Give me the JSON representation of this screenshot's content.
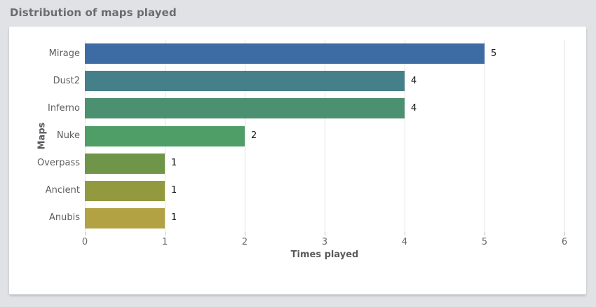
{
  "title": "Distribution of maps played",
  "chart_data": {
    "type": "bar",
    "orientation": "horizontal",
    "title": "Distribution of maps played",
    "categories": [
      "Mirage",
      "Dust2",
      "Inferno",
      "Nuke",
      "Overpass",
      "Ancient",
      "Anubis"
    ],
    "values": [
      5,
      4,
      4,
      2,
      1,
      1,
      1
    ],
    "value_labels": [
      "5",
      "4",
      "4",
      "2",
      "1",
      "1",
      "1"
    ],
    "bar_colors": [
      "#3d6ca5",
      "#45808a",
      "#4b9070",
      "#4f9d67",
      "#6f9549",
      "#93993f",
      "#b3a244"
    ],
    "xlabel": "Times played",
    "ylabel": "Maps",
    "xlim": [
      0,
      6
    ],
    "xticks": [
      0,
      1,
      2,
      3,
      4,
      5,
      6
    ],
    "grid": "vertical-only",
    "legend": "none"
  },
  "colors": {
    "page_bg": "#e1e2e5",
    "card_bg": "#ffffff",
    "gridline": "#e4e4e4",
    "tick_mark": "#bfbfbf",
    "tick_text": "#67696c",
    "category_text": "#5c5e61",
    "axis_label_text": "#595b5e",
    "value_text": "#1a1a1a",
    "title_text": "#6a6c6f"
  }
}
